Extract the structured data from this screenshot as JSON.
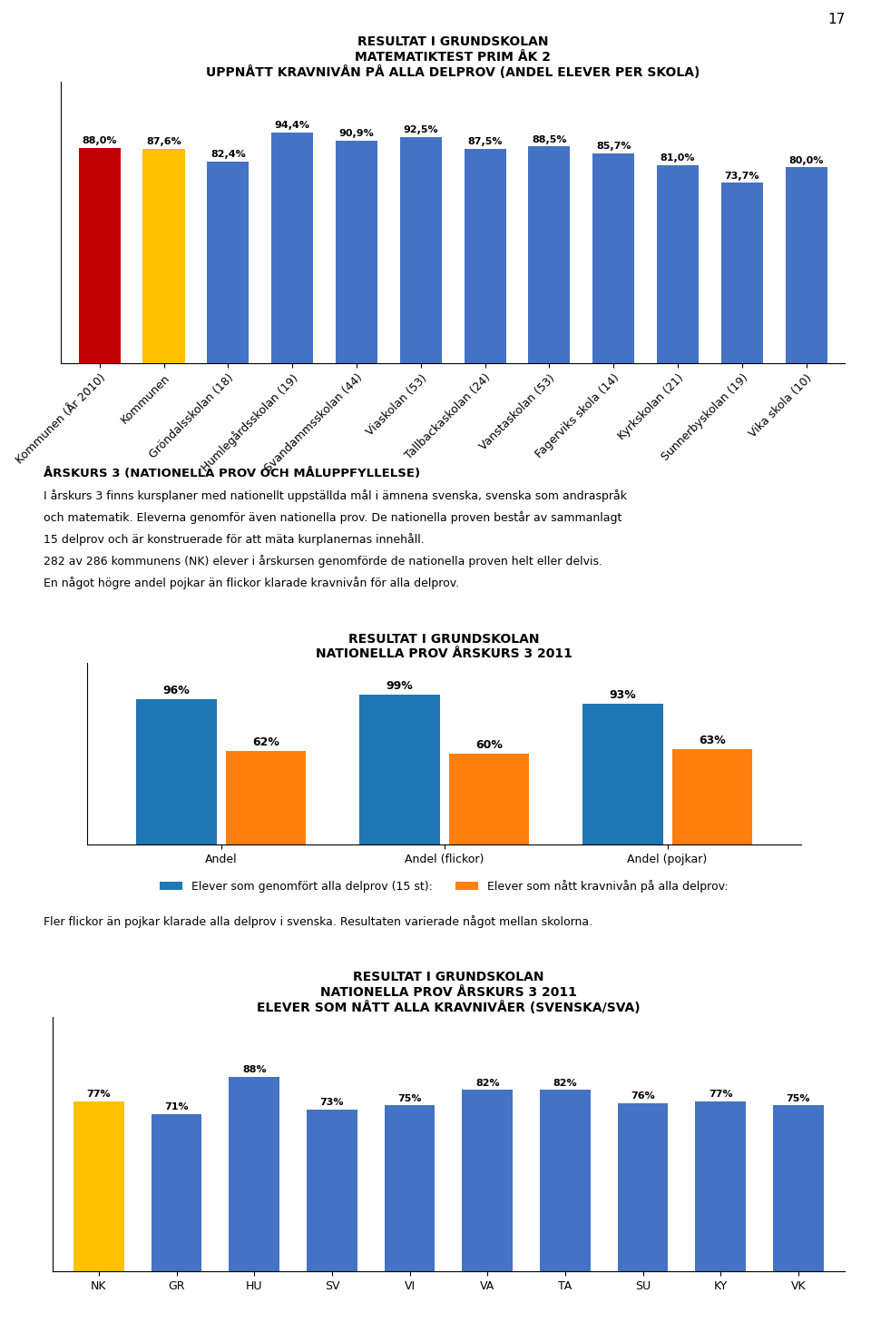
{
  "annotations": [
    "17"
  ],
  "chart_data": [
    {
      "type": "bar",
      "title": "RESULTAT I GRUNDSKOLAN\nMATEMATIKTEST PRIM ÅK 2\nUPPNÅTT KRAVNIVÅN PÅ ALLA DELPROV (ANDEL ELEVER PER SKOLA)",
      "categories": [
        "Kommunen (År 2010)",
        "Kommunen",
        "Gröndalsskolan (18)",
        "Humlegårdsskolan (19)",
        "Svandammsskolan (44)",
        "Viaskolan (53)",
        "Tallbackaskolan (24)",
        "Vanstaskolan (53)",
        "Fagerviks skola (14)",
        "Kyrkskolan (21)",
        "Sunnerbyskolan (19)",
        "Vika skola (10)"
      ],
      "values": [
        88.0,
        87.6,
        82.4,
        94.4,
        90.9,
        92.5,
        87.5,
        88.5,
        85.7,
        81.0,
        73.7,
        80.0
      ],
      "value_labels": [
        "88,0%",
        "87,6%",
        "82,4%",
        "94,4%",
        "90,9%",
        "92,5%",
        "87,5%",
        "88,5%",
        "85,7%",
        "81,0%",
        "73,7%",
        "80,0%"
      ],
      "colors": [
        "#c00000",
        "#ffc000",
        "#4472c4",
        "#4472c4",
        "#4472c4",
        "#4472c4",
        "#4472c4",
        "#4472c4",
        "#4472c4",
        "#4472c4",
        "#4472c4",
        "#4472c4"
      ],
      "ylim": [
        0,
        115
      ],
      "data_labels": true,
      "tick_labels": "x",
      "annotations": [
        "ÅRSKURS 3 (NATIONELLA PROV OCH MÅLUPPFYLLELSE)",
        "I årskurs 3 finns kursplaner med nationellt uppställda mål i ämnena svenska, svenska som andraspråk",
        "och matematik. Eleverna genomför även nationella prov. De nationella proven består av sammanlagt",
        "15 delprov och är konstruerade för att mäta kurplanernas innehåll.",
        "282 av 286 kommunens (NK) elever i årskursen genomförde de nationella proven helt eller delvis.",
        "En något högre andel pojkar än flickor klarade kravnivån för alla delprov."
      ]
    },
    {
      "type": "bar",
      "title": "RESULTAT I GRUNDSKOLAN\nNATIONELLA PROV ÅRSKURS 3 2011",
      "categories": [
        "Andel",
        "Andel (flickor)",
        "Andel (pojkar)"
      ],
      "series": [
        {
          "name": "Elever som genomfört alla delprov (15 st):",
          "values": [
            96,
            99,
            93
          ],
          "value_labels": [
            "96%",
            "99%",
            "93%"
          ]
        },
        {
          "name": "Elever som nått kravnivån på alla delprov:",
          "values": [
            62,
            60,
            63
          ],
          "value_labels": [
            "62%",
            "60%",
            "63%"
          ]
        }
      ],
      "ylim": [
        0,
        120
      ],
      "data_labels": true,
      "tick_labels": "x",
      "legend": "upper center",
      "annotations": [
        "Fler flickor än pojkar klarade alla delprov i svenska. Resultaten varierade något mellan skolorna."
      ]
    },
    {
      "type": "bar",
      "title": "RESULTAT I GRUNDSKOLAN\nNATIONELLA PROV ÅRSKURS 3 2011\nELEVER SOM NÅTT ALLA KRAVNIVÅER (SVENSKA/SVA)",
      "categories": [
        "NK",
        "GR",
        "HU",
        "SV",
        "VI",
        "VA",
        "TA",
        "SU",
        "KY",
        "VK"
      ],
      "values": [
        77,
        71,
        88,
        73,
        75,
        82,
        82,
        76,
        77,
        75
      ],
      "value_labels": [
        "77%",
        "71%",
        "88%",
        "73%",
        "75%",
        "82%",
        "82%",
        "76%",
        "77%",
        "75%"
      ],
      "colors": [
        "#ffc000",
        "#4472c4",
        "#4472c4",
        "#4472c4",
        "#4472c4",
        "#4472c4",
        "#4472c4",
        "#4472c4",
        "#4472c4",
        "#4472c4"
      ],
      "ylim": [
        0,
        115
      ],
      "data_labels": true,
      "tick_labels": "x"
    }
  ]
}
